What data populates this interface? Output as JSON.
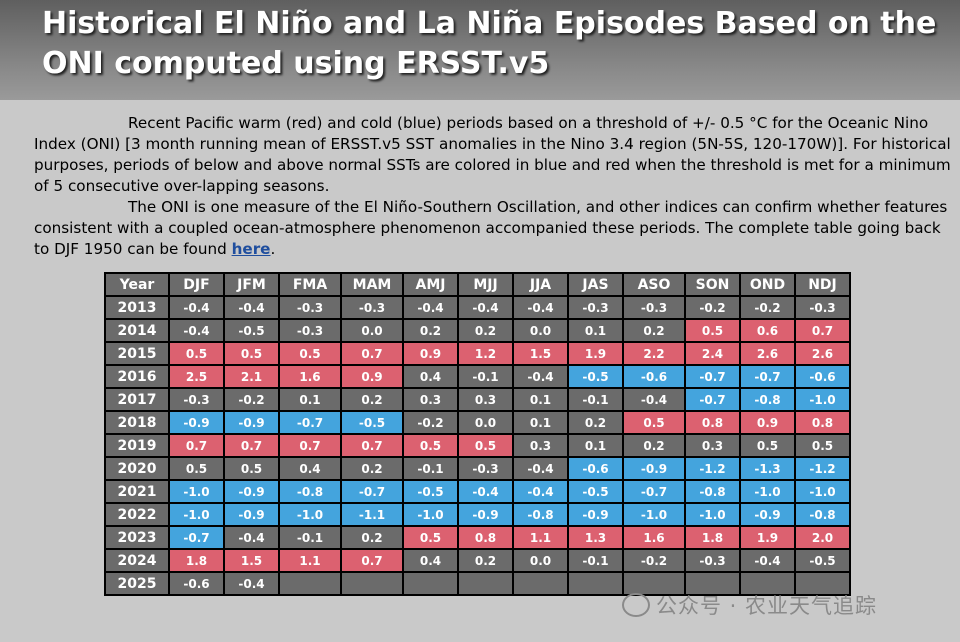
{
  "title_line1": "Historical El Niño and La Niña Episodes Based on the",
  "title_line2": "ONI computed using ERSST.v5",
  "para1": "Recent Pacific warm (red) and cold (blue) periods based on a threshold of +/- 0.5 °C for the Oceanic Nino Index (ONI) [3 month running mean of ERSST.v5 SST anomalies in the Nino 3.4 region (5N-5S, 120-170W)]. For historical purposes, periods of below and above normal SSTs are colored in blue and red when the threshold is met for a minimum of 5 consecutive over-lapping seasons.",
  "para2_text": "The ONI is one measure of the El Niño-Southern Oscillation, and other indices can confirm whether features consistent with a coupled ocean-atmosphere phenomenon accompanied these periods. The complete table going back to DJF 1950 can be found ",
  "para2_link": "here",
  "para2_end": ".",
  "colors": {
    "warm": "#dc6170",
    "cold": "#44a4dd",
    "neutral": "#6b6b6b"
  },
  "table": {
    "headers": [
      "Year",
      "DJF",
      "JFM",
      "FMA",
      "MAM",
      "AMJ",
      "MJJ",
      "JJA",
      "JAS",
      "ASO",
      "SON",
      "OND",
      "NDJ"
    ],
    "rows": [
      {
        "year": "2013",
        "values": [
          "-0.4",
          "-0.4",
          "-0.3",
          "-0.3",
          "-0.4",
          "-0.4",
          "-0.4",
          "-0.3",
          "-0.3",
          "-0.2",
          "-0.2",
          "-0.3"
        ],
        "phase": [
          "n",
          "n",
          "n",
          "n",
          "n",
          "n",
          "n",
          "n",
          "n",
          "n",
          "n",
          "n"
        ]
      },
      {
        "year": "2014",
        "values": [
          "-0.4",
          "-0.5",
          "-0.3",
          "0.0",
          "0.2",
          "0.2",
          "0.0",
          "0.1",
          "0.2",
          "0.5",
          "0.6",
          "0.7"
        ],
        "phase": [
          "n",
          "n",
          "n",
          "n",
          "n",
          "n",
          "n",
          "n",
          "n",
          "w",
          "w",
          "w"
        ]
      },
      {
        "year": "2015",
        "values": [
          "0.5",
          "0.5",
          "0.5",
          "0.7",
          "0.9",
          "1.2",
          "1.5",
          "1.9",
          "2.2",
          "2.4",
          "2.6",
          "2.6"
        ],
        "phase": [
          "w",
          "w",
          "w",
          "w",
          "w",
          "w",
          "w",
          "w",
          "w",
          "w",
          "w",
          "w"
        ]
      },
      {
        "year": "2016",
        "values": [
          "2.5",
          "2.1",
          "1.6",
          "0.9",
          "0.4",
          "-0.1",
          "-0.4",
          "-0.5",
          "-0.6",
          "-0.7",
          "-0.7",
          "-0.6"
        ],
        "phase": [
          "w",
          "w",
          "w",
          "w",
          "n",
          "n",
          "n",
          "k",
          "k",
          "k",
          "k",
          "k"
        ]
      },
      {
        "year": "2017",
        "values": [
          "-0.3",
          "-0.2",
          "0.1",
          "0.2",
          "0.3",
          "0.3",
          "0.1",
          "-0.1",
          "-0.4",
          "-0.7",
          "-0.8",
          "-1.0"
        ],
        "phase": [
          "n",
          "n",
          "n",
          "n",
          "n",
          "n",
          "n",
          "n",
          "n",
          "k",
          "k",
          "k"
        ]
      },
      {
        "year": "2018",
        "values": [
          "-0.9",
          "-0.9",
          "-0.7",
          "-0.5",
          "-0.2",
          "0.0",
          "0.1",
          "0.2",
          "0.5",
          "0.8",
          "0.9",
          "0.8"
        ],
        "phase": [
          "k",
          "k",
          "k",
          "k",
          "n",
          "n",
          "n",
          "n",
          "w",
          "w",
          "w",
          "w"
        ]
      },
      {
        "year": "2019",
        "values": [
          "0.7",
          "0.7",
          "0.7",
          "0.7",
          "0.5",
          "0.5",
          "0.3",
          "0.1",
          "0.2",
          "0.3",
          "0.5",
          "0.5"
        ],
        "phase": [
          "w",
          "w",
          "w",
          "w",
          "w",
          "w",
          "n",
          "n",
          "n",
          "n",
          "n",
          "n"
        ]
      },
      {
        "year": "2020",
        "values": [
          "0.5",
          "0.5",
          "0.4",
          "0.2",
          "-0.1",
          "-0.3",
          "-0.4",
          "-0.6",
          "-0.9",
          "-1.2",
          "-1.3",
          "-1.2"
        ],
        "phase": [
          "n",
          "n",
          "n",
          "n",
          "n",
          "n",
          "n",
          "k",
          "k",
          "k",
          "k",
          "k"
        ]
      },
      {
        "year": "2021",
        "values": [
          "-1.0",
          "-0.9",
          "-0.8",
          "-0.7",
          "-0.5",
          "-0.4",
          "-0.4",
          "-0.5",
          "-0.7",
          "-0.8",
          "-1.0",
          "-1.0"
        ],
        "phase": [
          "k",
          "k",
          "k",
          "k",
          "k",
          "k",
          "k",
          "k",
          "k",
          "k",
          "k",
          "k"
        ]
      },
      {
        "year": "2022",
        "values": [
          "-1.0",
          "-0.9",
          "-1.0",
          "-1.1",
          "-1.0",
          "-0.9",
          "-0.8",
          "-0.9",
          "-1.0",
          "-1.0",
          "-0.9",
          "-0.8"
        ],
        "phase": [
          "k",
          "k",
          "k",
          "k",
          "k",
          "k",
          "k",
          "k",
          "k",
          "k",
          "k",
          "k"
        ]
      },
      {
        "year": "2023",
        "values": [
          "-0.7",
          "-0.4",
          "-0.1",
          "0.2",
          "0.5",
          "0.8",
          "1.1",
          "1.3",
          "1.6",
          "1.8",
          "1.9",
          "2.0"
        ],
        "phase": [
          "k",
          "n",
          "n",
          "n",
          "w",
          "w",
          "w",
          "w",
          "w",
          "w",
          "w",
          "w"
        ]
      },
      {
        "year": "2024",
        "values": [
          "1.8",
          "1.5",
          "1.1",
          "0.7",
          "0.4",
          "0.2",
          "0.0",
          "-0.1",
          "-0.2",
          "-0.3",
          "-0.4",
          "-0.5"
        ],
        "phase": [
          "w",
          "w",
          "w",
          "w",
          "n",
          "n",
          "n",
          "n",
          "n",
          "n",
          "n",
          "n"
        ]
      },
      {
        "year": "2025",
        "values": [
          "-0.6",
          "-0.4",
          "",
          "",
          "",
          "",
          "",
          "",
          "",
          "",
          "",
          ""
        ],
        "phase": [
          "n",
          "n",
          "e",
          "e",
          "e",
          "e",
          "e",
          "e",
          "e",
          "e",
          "e",
          "e"
        ]
      }
    ]
  },
  "watermark": "公众号 · 农业天气追踪"
}
